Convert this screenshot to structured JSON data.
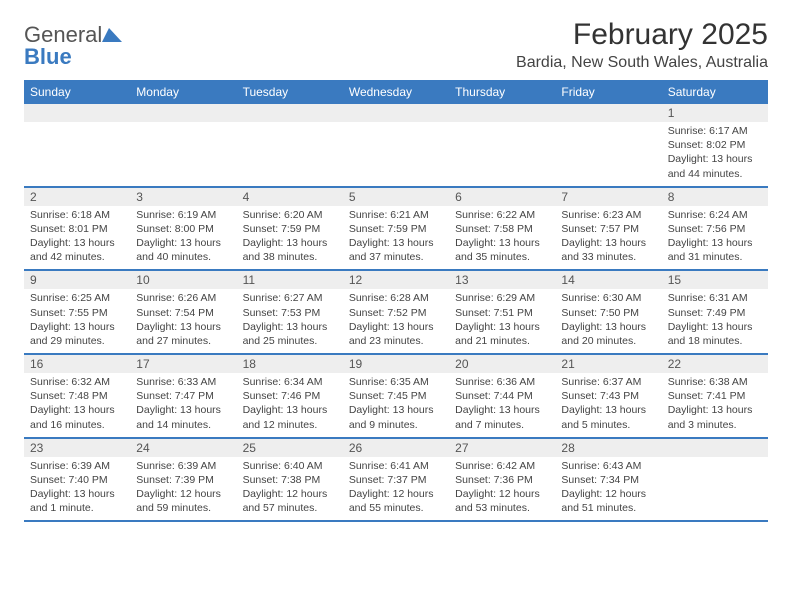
{
  "brand": {
    "general": "General",
    "blue": "Blue"
  },
  "title": "February 2025",
  "location": "Bardia, New South Wales, Australia",
  "colors": {
    "accent": "#3a7ac0",
    "header_text": "#ffffff",
    "numrow_bg": "#eeeeee",
    "border": "#3a7ac0",
    "body_text": "#444444",
    "title_text": "#333333"
  },
  "typography": {
    "title_fontsize_pt": 22,
    "location_fontsize_pt": 12,
    "dayhead_fontsize_pt": 9,
    "cell_fontsize_pt": 8
  },
  "day_names": [
    "Sunday",
    "Monday",
    "Tuesday",
    "Wednesday",
    "Thursday",
    "Friday",
    "Saturday"
  ],
  "weeks": [
    [
      {
        "n": "",
        "sr": "",
        "ss": "",
        "dl": ""
      },
      {
        "n": "",
        "sr": "",
        "ss": "",
        "dl": ""
      },
      {
        "n": "",
        "sr": "",
        "ss": "",
        "dl": ""
      },
      {
        "n": "",
        "sr": "",
        "ss": "",
        "dl": ""
      },
      {
        "n": "",
        "sr": "",
        "ss": "",
        "dl": ""
      },
      {
        "n": "",
        "sr": "",
        "ss": "",
        "dl": ""
      },
      {
        "n": "1",
        "sr": "Sunrise: 6:17 AM",
        "ss": "Sunset: 8:02 PM",
        "dl": "Daylight: 13 hours and 44 minutes."
      }
    ],
    [
      {
        "n": "2",
        "sr": "Sunrise: 6:18 AM",
        "ss": "Sunset: 8:01 PM",
        "dl": "Daylight: 13 hours and 42 minutes."
      },
      {
        "n": "3",
        "sr": "Sunrise: 6:19 AM",
        "ss": "Sunset: 8:00 PM",
        "dl": "Daylight: 13 hours and 40 minutes."
      },
      {
        "n": "4",
        "sr": "Sunrise: 6:20 AM",
        "ss": "Sunset: 7:59 PM",
        "dl": "Daylight: 13 hours and 38 minutes."
      },
      {
        "n": "5",
        "sr": "Sunrise: 6:21 AM",
        "ss": "Sunset: 7:59 PM",
        "dl": "Daylight: 13 hours and 37 minutes."
      },
      {
        "n": "6",
        "sr": "Sunrise: 6:22 AM",
        "ss": "Sunset: 7:58 PM",
        "dl": "Daylight: 13 hours and 35 minutes."
      },
      {
        "n": "7",
        "sr": "Sunrise: 6:23 AM",
        "ss": "Sunset: 7:57 PM",
        "dl": "Daylight: 13 hours and 33 minutes."
      },
      {
        "n": "8",
        "sr": "Sunrise: 6:24 AM",
        "ss": "Sunset: 7:56 PM",
        "dl": "Daylight: 13 hours and 31 minutes."
      }
    ],
    [
      {
        "n": "9",
        "sr": "Sunrise: 6:25 AM",
        "ss": "Sunset: 7:55 PM",
        "dl": "Daylight: 13 hours and 29 minutes."
      },
      {
        "n": "10",
        "sr": "Sunrise: 6:26 AM",
        "ss": "Sunset: 7:54 PM",
        "dl": "Daylight: 13 hours and 27 minutes."
      },
      {
        "n": "11",
        "sr": "Sunrise: 6:27 AM",
        "ss": "Sunset: 7:53 PM",
        "dl": "Daylight: 13 hours and 25 minutes."
      },
      {
        "n": "12",
        "sr": "Sunrise: 6:28 AM",
        "ss": "Sunset: 7:52 PM",
        "dl": "Daylight: 13 hours and 23 minutes."
      },
      {
        "n": "13",
        "sr": "Sunrise: 6:29 AM",
        "ss": "Sunset: 7:51 PM",
        "dl": "Daylight: 13 hours and 21 minutes."
      },
      {
        "n": "14",
        "sr": "Sunrise: 6:30 AM",
        "ss": "Sunset: 7:50 PM",
        "dl": "Daylight: 13 hours and 20 minutes."
      },
      {
        "n": "15",
        "sr": "Sunrise: 6:31 AM",
        "ss": "Sunset: 7:49 PM",
        "dl": "Daylight: 13 hours and 18 minutes."
      }
    ],
    [
      {
        "n": "16",
        "sr": "Sunrise: 6:32 AM",
        "ss": "Sunset: 7:48 PM",
        "dl": "Daylight: 13 hours and 16 minutes."
      },
      {
        "n": "17",
        "sr": "Sunrise: 6:33 AM",
        "ss": "Sunset: 7:47 PM",
        "dl": "Daylight: 13 hours and 14 minutes."
      },
      {
        "n": "18",
        "sr": "Sunrise: 6:34 AM",
        "ss": "Sunset: 7:46 PM",
        "dl": "Daylight: 13 hours and 12 minutes."
      },
      {
        "n": "19",
        "sr": "Sunrise: 6:35 AM",
        "ss": "Sunset: 7:45 PM",
        "dl": "Daylight: 13 hours and 9 minutes."
      },
      {
        "n": "20",
        "sr": "Sunrise: 6:36 AM",
        "ss": "Sunset: 7:44 PM",
        "dl": "Daylight: 13 hours and 7 minutes."
      },
      {
        "n": "21",
        "sr": "Sunrise: 6:37 AM",
        "ss": "Sunset: 7:43 PM",
        "dl": "Daylight: 13 hours and 5 minutes."
      },
      {
        "n": "22",
        "sr": "Sunrise: 6:38 AM",
        "ss": "Sunset: 7:41 PM",
        "dl": "Daylight: 13 hours and 3 minutes."
      }
    ],
    [
      {
        "n": "23",
        "sr": "Sunrise: 6:39 AM",
        "ss": "Sunset: 7:40 PM",
        "dl": "Daylight: 13 hours and 1 minute."
      },
      {
        "n": "24",
        "sr": "Sunrise: 6:39 AM",
        "ss": "Sunset: 7:39 PM",
        "dl": "Daylight: 12 hours and 59 minutes."
      },
      {
        "n": "25",
        "sr": "Sunrise: 6:40 AM",
        "ss": "Sunset: 7:38 PM",
        "dl": "Daylight: 12 hours and 57 minutes."
      },
      {
        "n": "26",
        "sr": "Sunrise: 6:41 AM",
        "ss": "Sunset: 7:37 PM",
        "dl": "Daylight: 12 hours and 55 minutes."
      },
      {
        "n": "27",
        "sr": "Sunrise: 6:42 AM",
        "ss": "Sunset: 7:36 PM",
        "dl": "Daylight: 12 hours and 53 minutes."
      },
      {
        "n": "28",
        "sr": "Sunrise: 6:43 AM",
        "ss": "Sunset: 7:34 PM",
        "dl": "Daylight: 12 hours and 51 minutes."
      },
      {
        "n": "",
        "sr": "",
        "ss": "",
        "dl": ""
      }
    ]
  ]
}
